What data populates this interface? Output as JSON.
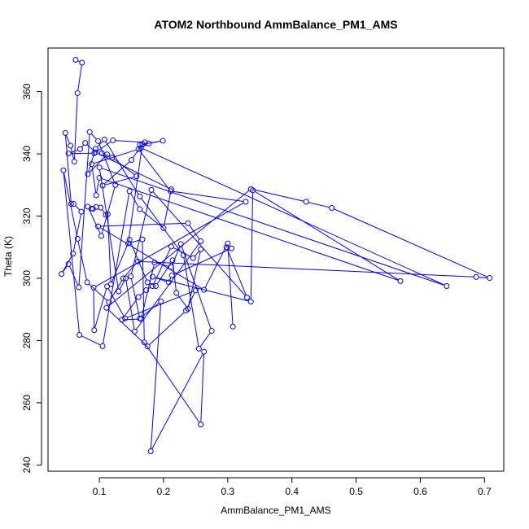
{
  "chart_data": {
    "type": "scatter",
    "title": "ATOM2 Northbound AmmBalance_PM1_AMS",
    "xlabel": "AmmBalance_PM1_AMS",
    "ylabel": "Theta (K)",
    "xlim": [
      0.02,
      0.73
    ],
    "ylim": [
      238,
      374
    ],
    "xticks": [
      0.1,
      0.2,
      0.3,
      0.4,
      0.5,
      0.6,
      0.7
    ],
    "xtick_labels": [
      "0.1",
      "0.2",
      "0.3",
      "0.4",
      "0.5",
      "0.6",
      "0.7"
    ],
    "yticks": [
      240,
      260,
      280,
      300,
      320,
      340,
      360
    ],
    "ytick_labels": [
      "240",
      "260",
      "280",
      "300",
      "320",
      "340",
      "360"
    ],
    "grid": false,
    "legend": "none",
    "series": [
      {
        "color": "#0000ff",
        "marker": "circle",
        "connect": true,
        "x": [
          0.063,
          0.073,
          0.066,
          0.061,
          0.055,
          0.047,
          0.056,
          0.06,
          0.072,
          0.059,
          0.041,
          0.052,
          0.068,
          0.085,
          0.098,
          0.125,
          0.103,
          0.082,
          0.088,
          0.09,
          0.095,
          0.102,
          0.11,
          0.113,
          0.118,
          0.147,
          0.175,
          0.188,
          0.214,
          0.22,
          0.238,
          0.258,
          0.246,
          0.212,
          0.183,
          0.173,
          0.161,
          0.135,
          0.165,
          0.186,
          0.212,
          0.227,
          0.275,
          0.255,
          0.231,
          0.163,
          0.108,
          0.094,
          0.082,
          0.112,
          0.104,
          0.12,
          0.158,
          0.105,
          0.15,
          0.167,
          0.145,
          0.167,
          0.17,
          0.258,
          0.263,
          0.18,
          0.196,
          0.163,
          0.149,
          0.181,
          0.33,
          0.298,
          0.306,
          0.213,
          0.208,
          0.183,
          0.336,
          0.339,
          0.569,
          0.1,
          0.095,
          0.088,
          0.161,
          0.211,
          0.328,
          0.091,
          0.092,
          0.112,
          0.14,
          0.25,
          0.235,
          0.175,
          0.111,
          0.336,
          0.422,
          0.462,
          0.708,
          0.687,
          0.16,
          0.137,
          0.115,
          0.081,
          0.066,
          0.044,
          0.069,
          0.105,
          0.147,
          0.163,
          0.2,
          0.212,
          0.094,
          0.078,
          0.07,
          0.052,
          0.092,
          0.121,
          0.171,
          0.163,
          0.199,
          0.177,
          0.165,
          0.641,
          0.1,
          0.13,
          0.141,
          0.155,
          0.258,
          0.238,
          0.098,
          0.263,
          0.3,
          0.308
        ],
        "y": [
          370.2,
          369.3,
          359.5,
          337.5,
          342.6,
          346.7,
          323.9,
          323.9,
          321.4,
          307.9,
          301.4,
          304.6,
          297.1,
          347.0,
          344.1,
          330.0,
          313.6,
          323.0,
          322.4,
          322.3,
          322.9,
          322.7,
          320.4,
          320.6,
          298.1,
          312.4,
          298.7,
          297.5,
          305.8,
          295.3,
          290.2,
          309.3,
          306.5,
          310.2,
          297.5,
          296.2,
          294.0,
          286.7,
          286.9,
          305.1,
          303.6,
          311.0,
          283.1,
          277.4,
          307.4,
          326.3,
          344.6,
          341.6,
          333.5,
          339.8,
          340.2,
          338.8,
          332.8,
          329.8,
          338.0,
          343.1,
          311.2,
          312.5,
          279.4,
          253.0,
          276.4,
          244.4,
          292.6,
          287.1,
          300.6,
          328.4,
          293.8,
          310.0,
          309.6,
          300.9,
          298.7,
          300.5,
          292.5,
          328.3,
          299.1,
          332.3,
          326.7,
          336.7,
          341.5,
          328.0,
          324.6,
          297.0,
          283.3,
          297.4,
          287.1,
          296.1,
          289.6,
          278.1,
          290.5,
          328.7,
          324.6,
          322.6,
          300.1,
          300.4,
          305.4,
          300.0,
          292.3,
          298.7,
          312.7,
          334.7,
          281.8,
          278.2,
          328.0,
          322.2,
          316.1,
          328.6,
          340.5,
          343.5,
          341.5,
          340.1,
          340.2,
          344.3,
          343.7,
          342.9,
          344.2,
          343.3,
          341.9,
          297.5,
          335.6,
          295.8,
          300.0,
          282.9,
          311.9,
          317.7,
          316.7,
          296.3,
          311.2,
          284.5
        ]
      }
    ]
  }
}
